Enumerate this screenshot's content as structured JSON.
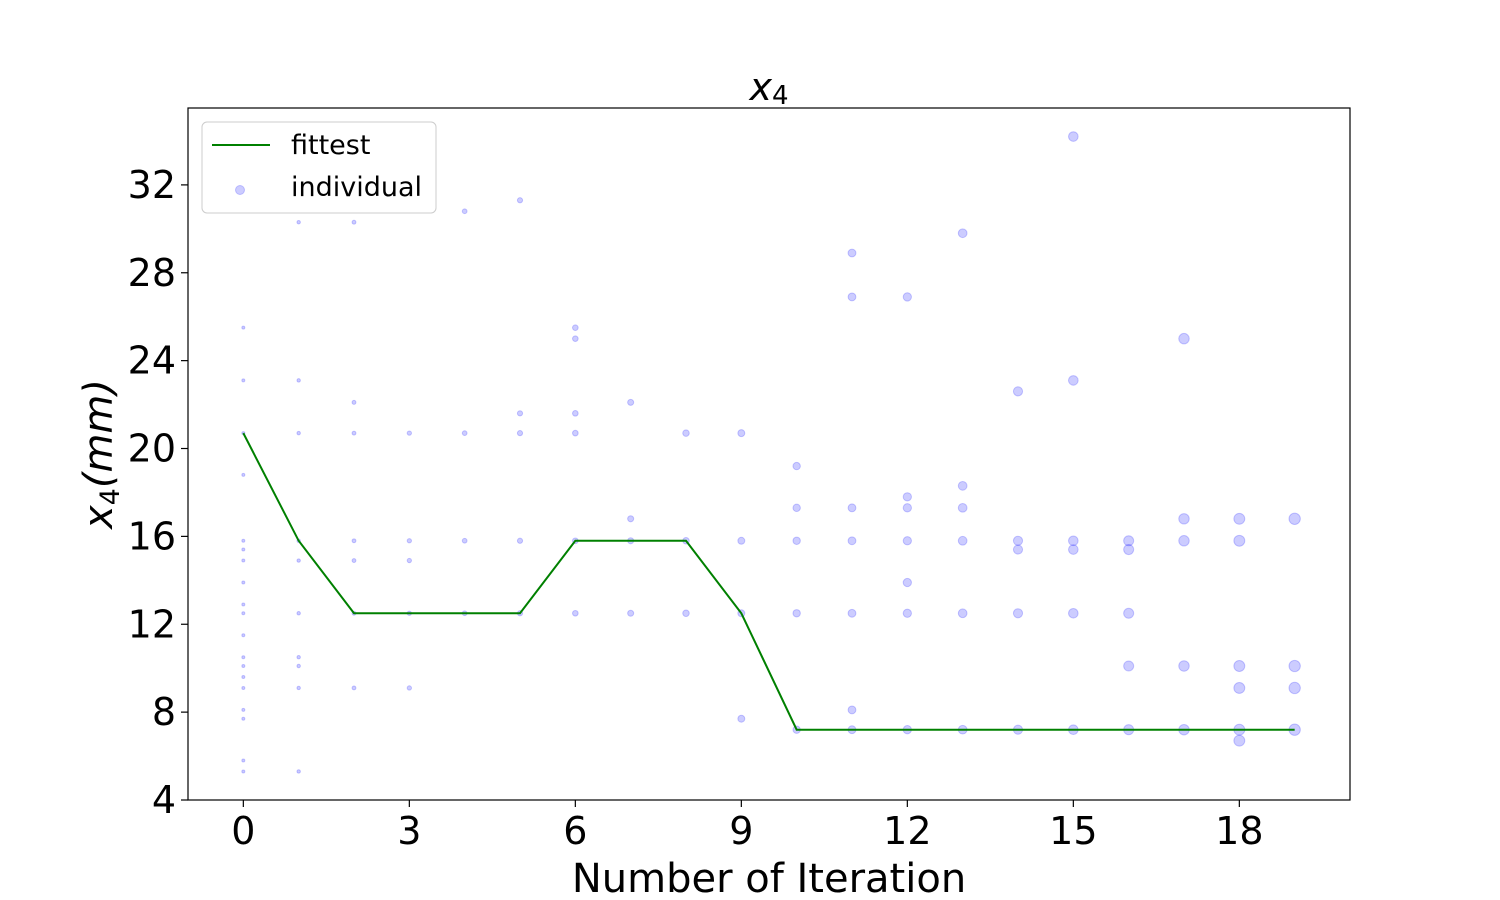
{
  "chart_data": {
    "type": "scatter",
    "title": "x4",
    "title_base": "x",
    "title_sub": "4",
    "xlabel": "Number of Iteration",
    "ylabel_base": "x",
    "ylabel_sub": "4",
    "ylabel_rest": "(mm)",
    "xlim": [
      -1,
      20
    ],
    "ylim": [
      4,
      35.5
    ],
    "xticks": [
      0,
      3,
      6,
      9,
      12,
      15,
      18
    ],
    "yticks": [
      4,
      8,
      12,
      16,
      20,
      24,
      28,
      32
    ],
    "grid": false,
    "legend_position": "top-left",
    "colors": {
      "fittest": "#008000",
      "individual": "#0000ff"
    },
    "series": [
      {
        "name": "fittest",
        "type": "line",
        "x": [
          0,
          1,
          2,
          3,
          4,
          5,
          6,
          7,
          8,
          9,
          10,
          11,
          12,
          13,
          14,
          15,
          16,
          17,
          18,
          19
        ],
        "y": [
          20.7,
          15.8,
          12.5,
          12.5,
          12.5,
          12.5,
          15.8,
          15.8,
          15.8,
          12.5,
          7.2,
          7.2,
          7.2,
          7.2,
          7.2,
          7.2,
          7.2,
          7.2,
          7.2,
          7.2
        ]
      },
      {
        "name": "individual",
        "type": "scatter",
        "points": [
          [
            0,
            25.5
          ],
          [
            0,
            23.1
          ],
          [
            0,
            20.7
          ],
          [
            0,
            18.8
          ],
          [
            0,
            15.8
          ],
          [
            0,
            15.4
          ],
          [
            0,
            14.9
          ],
          [
            0,
            13.9
          ],
          [
            0,
            12.9
          ],
          [
            0,
            12.5
          ],
          [
            0,
            11.5
          ],
          [
            0,
            10.5
          ],
          [
            0,
            10.1
          ],
          [
            0,
            9.6
          ],
          [
            0,
            9.1
          ],
          [
            0,
            8.1
          ],
          [
            0,
            7.7
          ],
          [
            0,
            5.8
          ],
          [
            0,
            5.3
          ],
          [
            1,
            30.3
          ],
          [
            1,
            23.1
          ],
          [
            1,
            20.7
          ],
          [
            1,
            15.8
          ],
          [
            1,
            14.9
          ],
          [
            1,
            12.5
          ],
          [
            1,
            10.5
          ],
          [
            1,
            10.1
          ],
          [
            1,
            9.1
          ],
          [
            1,
            5.3
          ],
          [
            2,
            30.3
          ],
          [
            2,
            22.1
          ],
          [
            2,
            20.7
          ],
          [
            2,
            15.8
          ],
          [
            2,
            14.9
          ],
          [
            2,
            12.5
          ],
          [
            2,
            9.1
          ],
          [
            3,
            20.7
          ],
          [
            3,
            15.8
          ],
          [
            3,
            14.9
          ],
          [
            3,
            12.5
          ],
          [
            3,
            9.1
          ],
          [
            4,
            30.8
          ],
          [
            4,
            20.7
          ],
          [
            4,
            15.8
          ],
          [
            4,
            12.5
          ],
          [
            5,
            31.3
          ],
          [
            5,
            21.6
          ],
          [
            5,
            20.7
          ],
          [
            5,
            15.8
          ],
          [
            5,
            12.5
          ],
          [
            6,
            25.5
          ],
          [
            6,
            25.0
          ],
          [
            6,
            21.6
          ],
          [
            6,
            20.7
          ],
          [
            6,
            15.8
          ],
          [
            6,
            12.5
          ],
          [
            7,
            22.1
          ],
          [
            7,
            16.8
          ],
          [
            7,
            15.8
          ],
          [
            7,
            12.5
          ],
          [
            8,
            20.7
          ],
          [
            8,
            15.8
          ],
          [
            8,
            12.5
          ],
          [
            9,
            20.7
          ],
          [
            9,
            15.8
          ],
          [
            9,
            12.5
          ],
          [
            9,
            7.7
          ],
          [
            10,
            19.2
          ],
          [
            10,
            17.3
          ],
          [
            10,
            15.8
          ],
          [
            10,
            12.5
          ],
          [
            10,
            7.2
          ],
          [
            11,
            28.9
          ],
          [
            11,
            26.9
          ],
          [
            11,
            17.3
          ],
          [
            11,
            15.8
          ],
          [
            11,
            12.5
          ],
          [
            11,
            8.1
          ],
          [
            11,
            7.2
          ],
          [
            12,
            26.9
          ],
          [
            12,
            17.8
          ],
          [
            12,
            17.3
          ],
          [
            12,
            15.8
          ],
          [
            12,
            13.9
          ],
          [
            12,
            12.5
          ],
          [
            12,
            7.2
          ],
          [
            13,
            29.8
          ],
          [
            13,
            18.3
          ],
          [
            13,
            17.3
          ],
          [
            13,
            15.8
          ],
          [
            13,
            12.5
          ],
          [
            13,
            7.2
          ],
          [
            14,
            22.6
          ],
          [
            14,
            15.8
          ],
          [
            14,
            15.4
          ],
          [
            14,
            12.5
          ],
          [
            14,
            7.2
          ],
          [
            15,
            34.2
          ],
          [
            15,
            23.1
          ],
          [
            15,
            15.8
          ],
          [
            15,
            15.4
          ],
          [
            15,
            12.5
          ],
          [
            15,
            7.2
          ],
          [
            16,
            15.8
          ],
          [
            16,
            15.4
          ],
          [
            16,
            12.5
          ],
          [
            16,
            10.1
          ],
          [
            16,
            7.2
          ],
          [
            17,
            25.0
          ],
          [
            17,
            16.8
          ],
          [
            17,
            15.8
          ],
          [
            17,
            10.1
          ],
          [
            17,
            7.2
          ],
          [
            18,
            16.8
          ],
          [
            18,
            15.8
          ],
          [
            18,
            10.1
          ],
          [
            18,
            9.1
          ],
          [
            18,
            7.2
          ],
          [
            18,
            6.7
          ],
          [
            19,
            16.8
          ],
          [
            19,
            10.1
          ],
          [
            19,
            9.1
          ],
          [
            19,
            7.2
          ]
        ]
      }
    ]
  }
}
